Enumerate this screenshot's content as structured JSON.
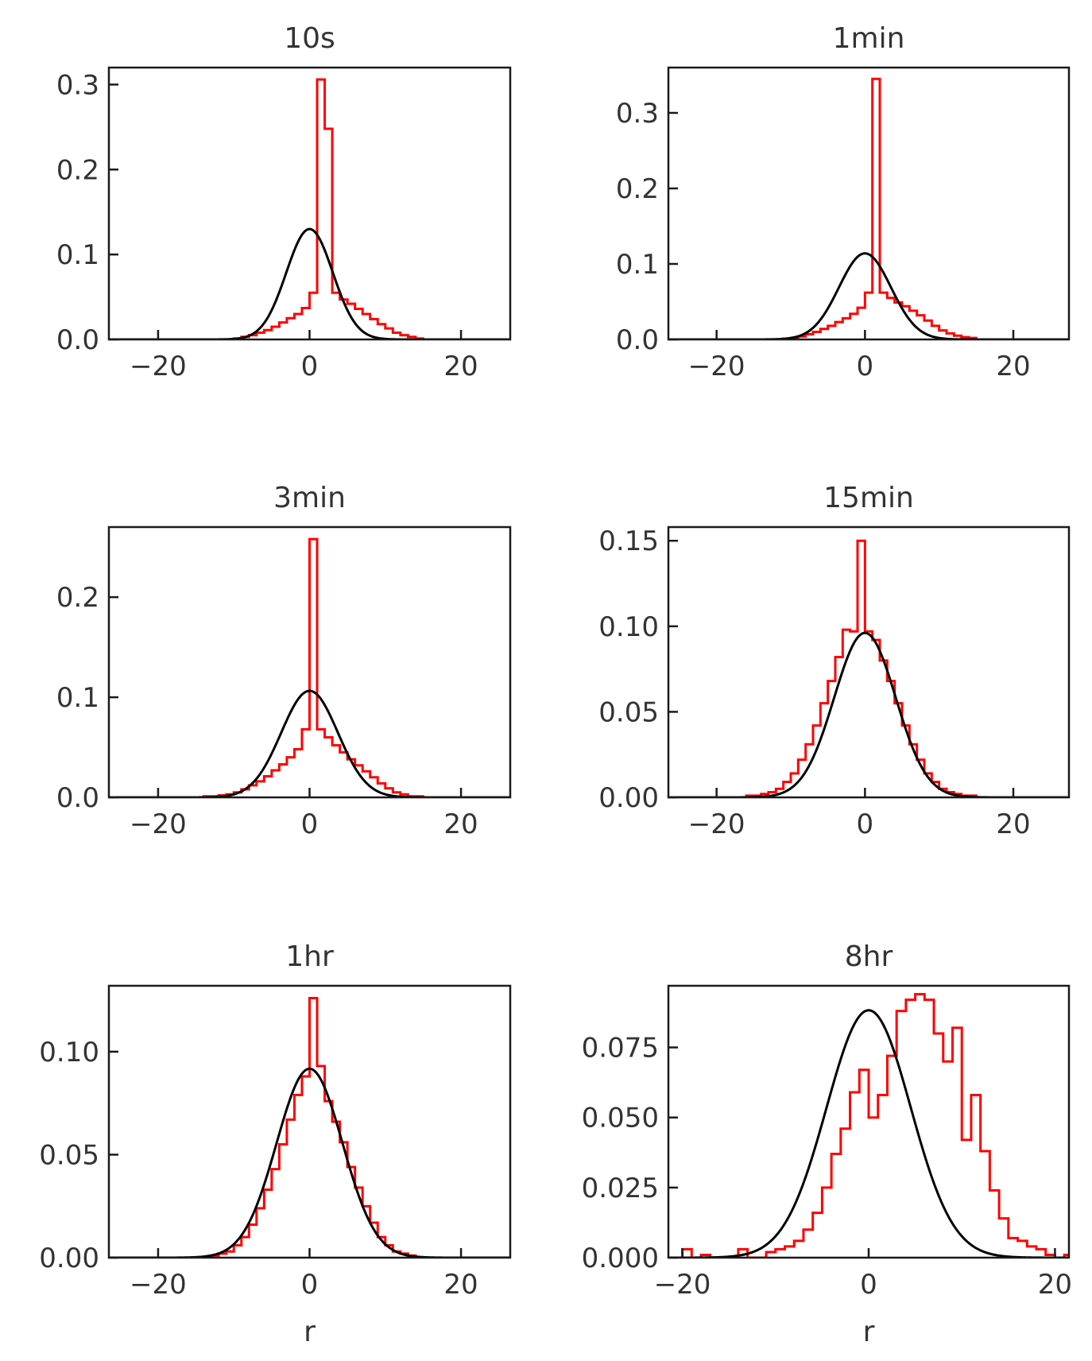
{
  "figure": {
    "background": "#ffffff"
  },
  "colors": {
    "histogram": "#ff0000",
    "fit": "#000000",
    "axes": "#1a1a1a",
    "text": "#333333"
  },
  "chart_data": [
    {
      "type": "line",
      "title": "10s",
      "xlabel": "",
      "ylabel": "",
      "xlim": [
        -26.5,
        26.5
      ],
      "ylim": [
        0,
        0.32
      ],
      "xticks": [
        -20,
        0,
        20
      ],
      "xtick_labels": [
        "−20",
        "0",
        "20"
      ],
      "yticks": [
        0.0,
        0.1,
        0.2,
        0.3
      ],
      "ytick_labels": [
        "0.0",
        "0.1",
        "0.2",
        "0.3"
      ],
      "series": [
        {
          "kind": "step",
          "color": "#ff0000",
          "bin_width": 1,
          "bin_start": -12,
          "values": [
            0.0,
            0.0,
            0.001,
            0.003,
            0.005,
            0.008,
            0.011,
            0.015,
            0.02,
            0.025,
            0.03,
            0.037,
            0.055,
            0.306,
            0.248,
            0.055,
            0.047,
            0.042,
            0.036,
            0.03,
            0.024,
            0.018,
            0.013,
            0.008,
            0.005,
            0.003,
            0.001
          ]
        },
        {
          "kind": "fit",
          "color": "#000000",
          "mu": 0,
          "sigma": 3.07
        }
      ]
    },
    {
      "type": "line",
      "title": "1min",
      "xlabel": "",
      "ylabel": "",
      "xlim": [
        -26.5,
        27.5
      ],
      "ylim": [
        0,
        0.36
      ],
      "xticks": [
        -20,
        0,
        20
      ],
      "xtick_labels": [
        "−20",
        "0",
        "20"
      ],
      "yticks": [
        0.0,
        0.1,
        0.2,
        0.3
      ],
      "ytick_labels": [
        "0.0",
        "0.1",
        "0.2",
        "0.3"
      ],
      "series": [
        {
          "kind": "step",
          "color": "#ff0000",
          "bin_width": 1,
          "bin_start": -12,
          "values": [
            0.0,
            0.001,
            0.002,
            0.004,
            0.007,
            0.01,
            0.014,
            0.018,
            0.023,
            0.028,
            0.034,
            0.042,
            0.062,
            0.345,
            0.062,
            0.055,
            0.049,
            0.044,
            0.038,
            0.032,
            0.025,
            0.018,
            0.012,
            0.008,
            0.005,
            0.003,
            0.002
          ]
        },
        {
          "kind": "fit",
          "color": "#000000",
          "mu": 0,
          "sigma": 3.5
        }
      ]
    },
    {
      "type": "line",
      "title": "3min",
      "xlabel": "",
      "ylabel": "",
      "xlim": [
        -26.5,
        26.5
      ],
      "ylim": [
        0,
        0.27
      ],
      "xticks": [
        -20,
        0,
        20
      ],
      "xtick_labels": [
        "−20",
        "0",
        "20"
      ],
      "yticks": [
        0.0,
        0.1,
        0.2
      ],
      "ytick_labels": [
        "0.0",
        "0.1",
        "0.2"
      ],
      "series": [
        {
          "kind": "step",
          "color": "#ff0000",
          "bin_width": 1,
          "bin_start": -15,
          "values": [
            0.0,
            0.001,
            0.001,
            0.002,
            0.003,
            0.005,
            0.008,
            0.012,
            0.016,
            0.021,
            0.027,
            0.033,
            0.04,
            0.048,
            0.068,
            0.258,
            0.068,
            0.06,
            0.052,
            0.045,
            0.038,
            0.032,
            0.026,
            0.02,
            0.014,
            0.009,
            0.005,
            0.003,
            0.001,
            0.001
          ]
        },
        {
          "kind": "fit",
          "color": "#000000",
          "mu": 0,
          "sigma": 3.75
        }
      ]
    },
    {
      "type": "line",
      "title": "15min",
      "xlabel": "",
      "ylabel": "",
      "xlim": [
        -26.5,
        27.5
      ],
      "ylim": [
        0,
        0.158
      ],
      "xticks": [
        -20,
        0,
        20
      ],
      "xtick_labels": [
        "−20",
        "0",
        "20"
      ],
      "yticks": [
        0.0,
        0.05,
        0.1,
        0.15
      ],
      "ytick_labels": [
        "0.00",
        "0.05",
        "0.10",
        "0.15"
      ],
      "series": [
        {
          "kind": "step",
          "color": "#ff0000",
          "bin_width": 1,
          "bin_start": -16,
          "values": [
            0.001,
            0.001,
            0.002,
            0.003,
            0.005,
            0.009,
            0.014,
            0.022,
            0.031,
            0.042,
            0.055,
            0.068,
            0.082,
            0.098,
            0.097,
            0.15,
            0.097,
            0.092,
            0.08,
            0.068,
            0.055,
            0.042,
            0.031,
            0.022,
            0.014,
            0.009,
            0.005,
            0.003,
            0.002,
            0.001,
            0.001
          ]
        },
        {
          "kind": "fit",
          "color": "#000000",
          "mu": 0,
          "sigma": 4.15
        }
      ]
    },
    {
      "type": "line",
      "title": "1hr",
      "xlabel": "r",
      "ylabel": "",
      "xlim": [
        -26.5,
        26.5
      ],
      "ylim": [
        0,
        0.132
      ],
      "xticks": [
        -20,
        0,
        20
      ],
      "xtick_labels": [
        "−20",
        "0",
        "20"
      ],
      "yticks": [
        0.0,
        0.05,
        0.1
      ],
      "ytick_labels": [
        "0.00",
        "0.05",
        "0.10"
      ],
      "series": [
        {
          "kind": "step",
          "color": "#ff0000",
          "bin_width": 1,
          "bin_start": -14,
          "values": [
            0.0,
            0.001,
            0.002,
            0.003,
            0.006,
            0.01,
            0.016,
            0.024,
            0.033,
            0.043,
            0.055,
            0.067,
            0.079,
            0.088,
            0.126,
            0.093,
            0.076,
            0.066,
            0.056,
            0.044,
            0.034,
            0.025,
            0.017,
            0.01,
            0.006,
            0.003,
            0.002,
            0.001
          ]
        },
        {
          "kind": "fit",
          "color": "#000000",
          "mu": 0,
          "sigma": 4.35
        }
      ]
    },
    {
      "type": "line",
      "title": "8hr",
      "xlabel": "r",
      "ylabel": "",
      "xlim": [
        -21.5,
        21.5
      ],
      "ylim": [
        0,
        0.097
      ],
      "xticks": [
        -20,
        0,
        20
      ],
      "xtick_labels": [
        "−20",
        "0",
        "20"
      ],
      "yticks": [
        0.0,
        0.025,
        0.05,
        0.075
      ],
      "ytick_labels": [
        "0.000",
        "0.025",
        "0.050",
        "0.075"
      ],
      "series": [
        {
          "kind": "step",
          "color": "#ff0000",
          "bin_width": 1,
          "bin_start": -21,
          "values": [
            0.0,
            0.003,
            0.0,
            0.001,
            0.0,
            0.0,
            0.0,
            0.003,
            0.0,
            0.0,
            0.002,
            0.003,
            0.004,
            0.006,
            0.01,
            0.016,
            0.025,
            0.037,
            0.046,
            0.059,
            0.067,
            0.05,
            0.058,
            0.072,
            0.088,
            0.092,
            0.094,
            0.092,
            0.08,
            0.07,
            0.082,
            0.042,
            0.058,
            0.038,
            0.024,
            0.014,
            0.007,
            0.006,
            0.004,
            0.003,
            0.001,
            0.0,
            0.001,
            0.0
          ]
        },
        {
          "kind": "fit",
          "color": "#000000",
          "mu": 0,
          "sigma": 4.52
        }
      ]
    }
  ]
}
